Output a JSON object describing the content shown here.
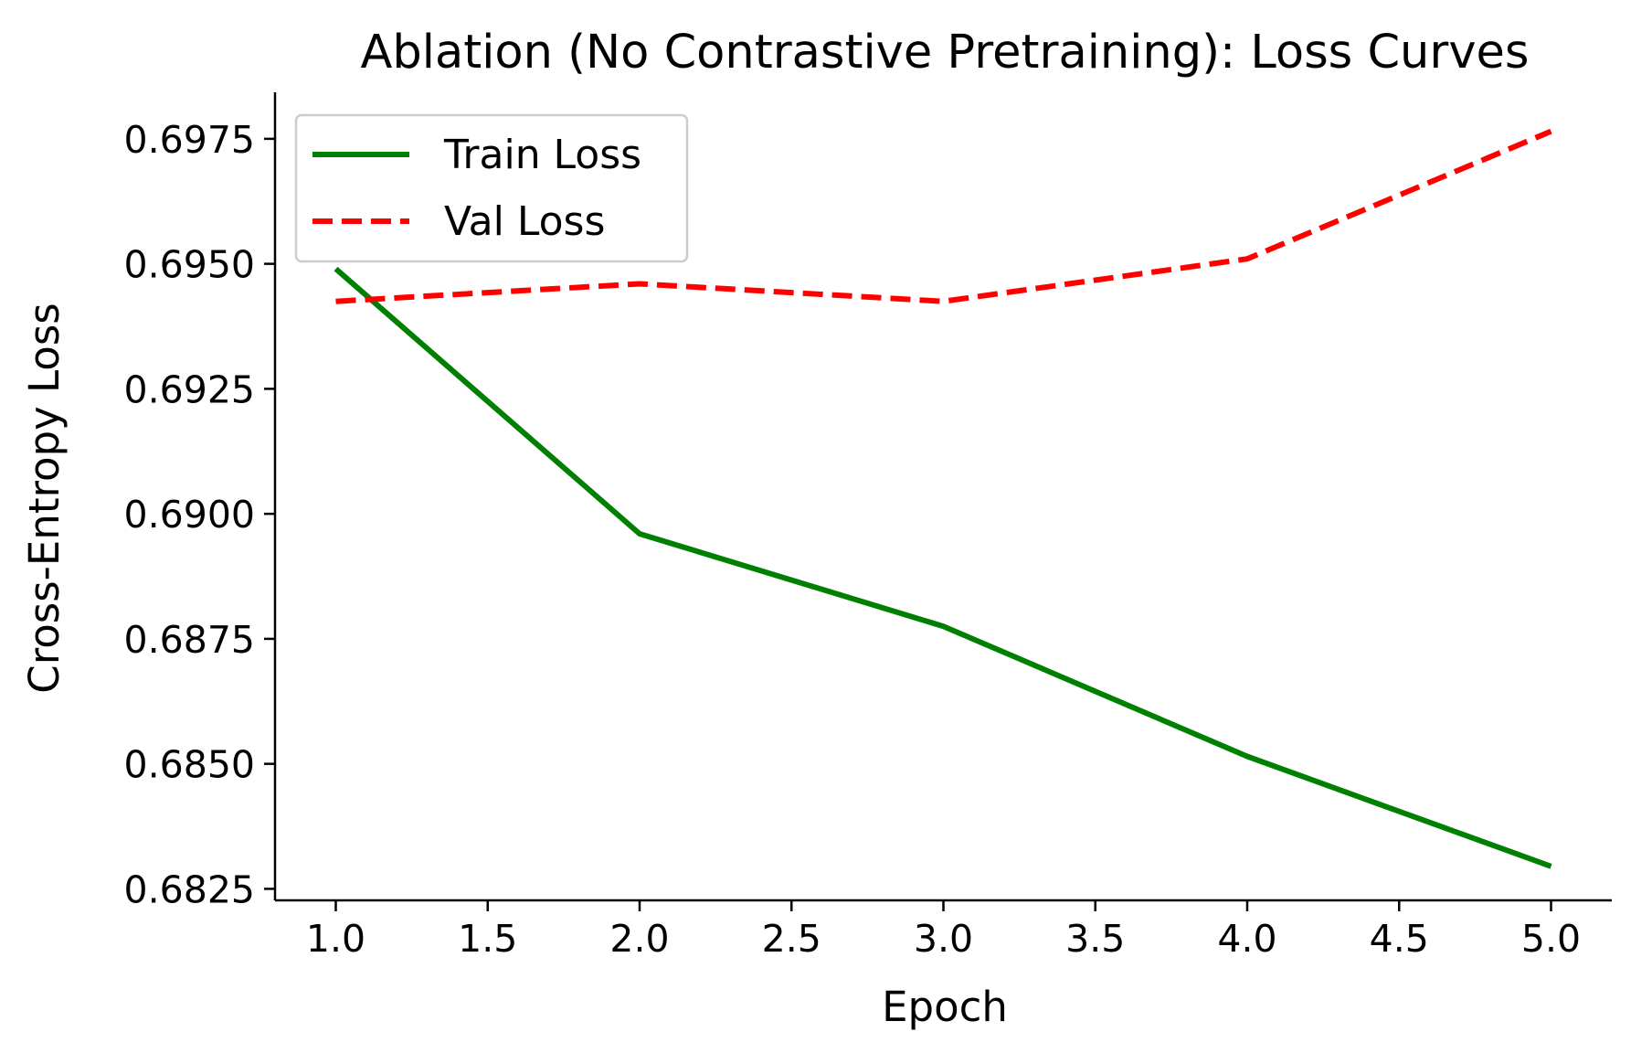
{
  "chart_data": {
    "type": "line",
    "title": "Ablation (No Contrastive Pretraining): Loss Curves",
    "xlabel": "Epoch",
    "ylabel": "Cross-Entropy Loss",
    "x": [
      1.0,
      2.0,
      3.0,
      4.0,
      5.0
    ],
    "xlim": [
      0.8,
      5.2
    ],
    "ylim": [
      0.68227,
      0.69843
    ],
    "xticks": [
      "1.0",
      "1.5",
      "2.0",
      "2.5",
      "3.0",
      "3.5",
      "4.0",
      "4.5",
      "5.0"
    ],
    "yticks": [
      "0.6825",
      "0.6850",
      "0.6875",
      "0.6900",
      "0.6925",
      "0.6950",
      "0.6975"
    ],
    "grid": false,
    "legend_position": "top-left",
    "series": [
      {
        "name": "Train Loss",
        "values": [
          0.6949,
          0.6896,
          0.68775,
          0.68515,
          0.68295
        ],
        "color": "#008000",
        "style": "solid"
      },
      {
        "name": "Val Loss",
        "values": [
          0.69425,
          0.6946,
          0.69425,
          0.6951,
          0.69765
        ],
        "color": "#ff0000",
        "style": "dashed"
      }
    ]
  }
}
